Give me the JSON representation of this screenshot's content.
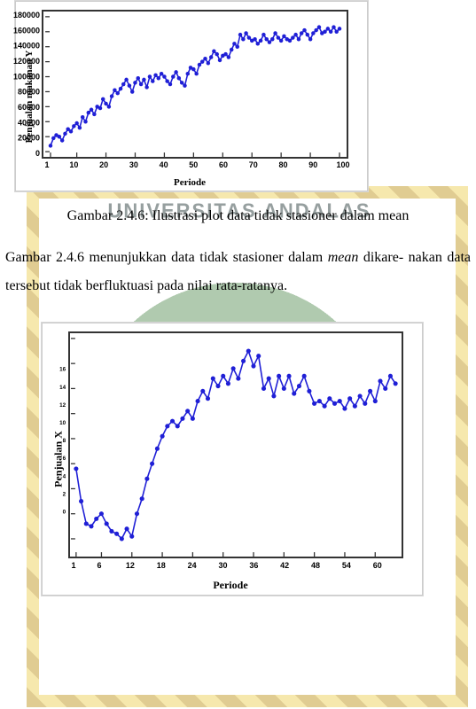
{
  "watermark_text": "UNIVERSITAS ANDALAS",
  "chart1": {
    "type": "line",
    "ylabel": "Penjualan makanan Y",
    "xlabel": "Periode",
    "xlim": [
      1,
      100
    ],
    "ylim": [
      0,
      180000
    ],
    "xticks": [
      1,
      10,
      20,
      30,
      40,
      50,
      60,
      70,
      80,
      90,
      100
    ],
    "yticks": [
      0,
      20000,
      40000,
      60000,
      80000,
      100000,
      120000,
      140000,
      160000,
      180000
    ],
    "line_color": "#1f1fd6",
    "marker_color": "#1f1fd6",
    "marker_radius": 2.3,
    "line_width": 1.6,
    "border_color": "#333333",
    "plot_bg": "#ffffff",
    "axis_font_size": 9,
    "label_font_size": 11,
    "data": [
      8000,
      18000,
      22000,
      20000,
      15000,
      24000,
      30000,
      27000,
      34000,
      38000,
      32000,
      46000,
      40000,
      52000,
      56000,
      50000,
      60000,
      58000,
      70000,
      64000,
      60000,
      74000,
      82000,
      78000,
      84000,
      90000,
      96000,
      88000,
      80000,
      92000,
      98000,
      90000,
      96000,
      86000,
      100000,
      94000,
      102000,
      98000,
      104000,
      100000,
      94000,
      90000,
      100000,
      106000,
      98000,
      92000,
      88000,
      104000,
      112000,
      110000,
      104000,
      116000,
      120000,
      124000,
      118000,
      126000,
      134000,
      130000,
      122000,
      128000,
      130000,
      126000,
      136000,
      144000,
      140000,
      156000,
      150000,
      158000,
      152000,
      148000,
      150000,
      144000,
      148000,
      156000,
      150000,
      146000,
      150000,
      158000,
      152000,
      148000,
      154000,
      150000,
      148000,
      152000,
      156000,
      150000,
      158000,
      162000,
      156000,
      150000,
      158000,
      162000,
      166000,
      158000,
      160000,
      164000,
      160000,
      166000,
      160000,
      164000
    ]
  },
  "caption1": "Gambar 2.4.6: Ilustrasi plot data tidak stasioner dalam mean",
  "paragraph": {
    "pre": "Gambar 2.4.6 menunjukkan data tidak stasioner dalam ",
    "em": "mean",
    "post": " dikare-\nnakan data tersebut tidak berfluktuasi pada nilai rata-ratanya."
  },
  "chart2": {
    "type": "line",
    "ylabel": "Penjualan X",
    "xlabel": "Periode",
    "xlim": [
      1,
      64
    ],
    "ylim": [
      -1,
      16
    ],
    "xticks": [
      1,
      6,
      12,
      18,
      24,
      30,
      36,
      42,
      48,
      54,
      60
    ],
    "yticks": [
      0,
      2,
      4,
      6,
      8,
      10,
      12,
      14,
      16
    ],
    "line_color": "#1f1fd6",
    "marker_color": "#1f1fd6",
    "marker_radius": 2.6,
    "line_width": 1.6,
    "border_color": "#333333",
    "plot_bg": "#ffffff",
    "axis_font_size": 9,
    "label_font_size": 11,
    "data": [
      5.6,
      3.0,
      1.2,
      1.0,
      1.6,
      2.0,
      1.2,
      0.6,
      0.4,
      0.0,
      0.8,
      0.2,
      2.0,
      3.2,
      4.8,
      6.0,
      7.2,
      8.2,
      9.0,
      9.4,
      9.0,
      9.6,
      10.2,
      9.6,
      11.0,
      11.8,
      11.2,
      12.8,
      12.2,
      13.0,
      12.4,
      13.6,
      12.8,
      14.2,
      15.0,
      13.8,
      14.6,
      12.0,
      12.8,
      11.4,
      13.0,
      12.0,
      13.0,
      11.6,
      12.2,
      13.0,
      11.8,
      10.8,
      11.0,
      10.6,
      11.2,
      10.8,
      11.0,
      10.4,
      11.2,
      10.6,
      11.4,
      10.8,
      11.8,
      11.0,
      12.6,
      12.0,
      13.0,
      12.4
    ]
  }
}
